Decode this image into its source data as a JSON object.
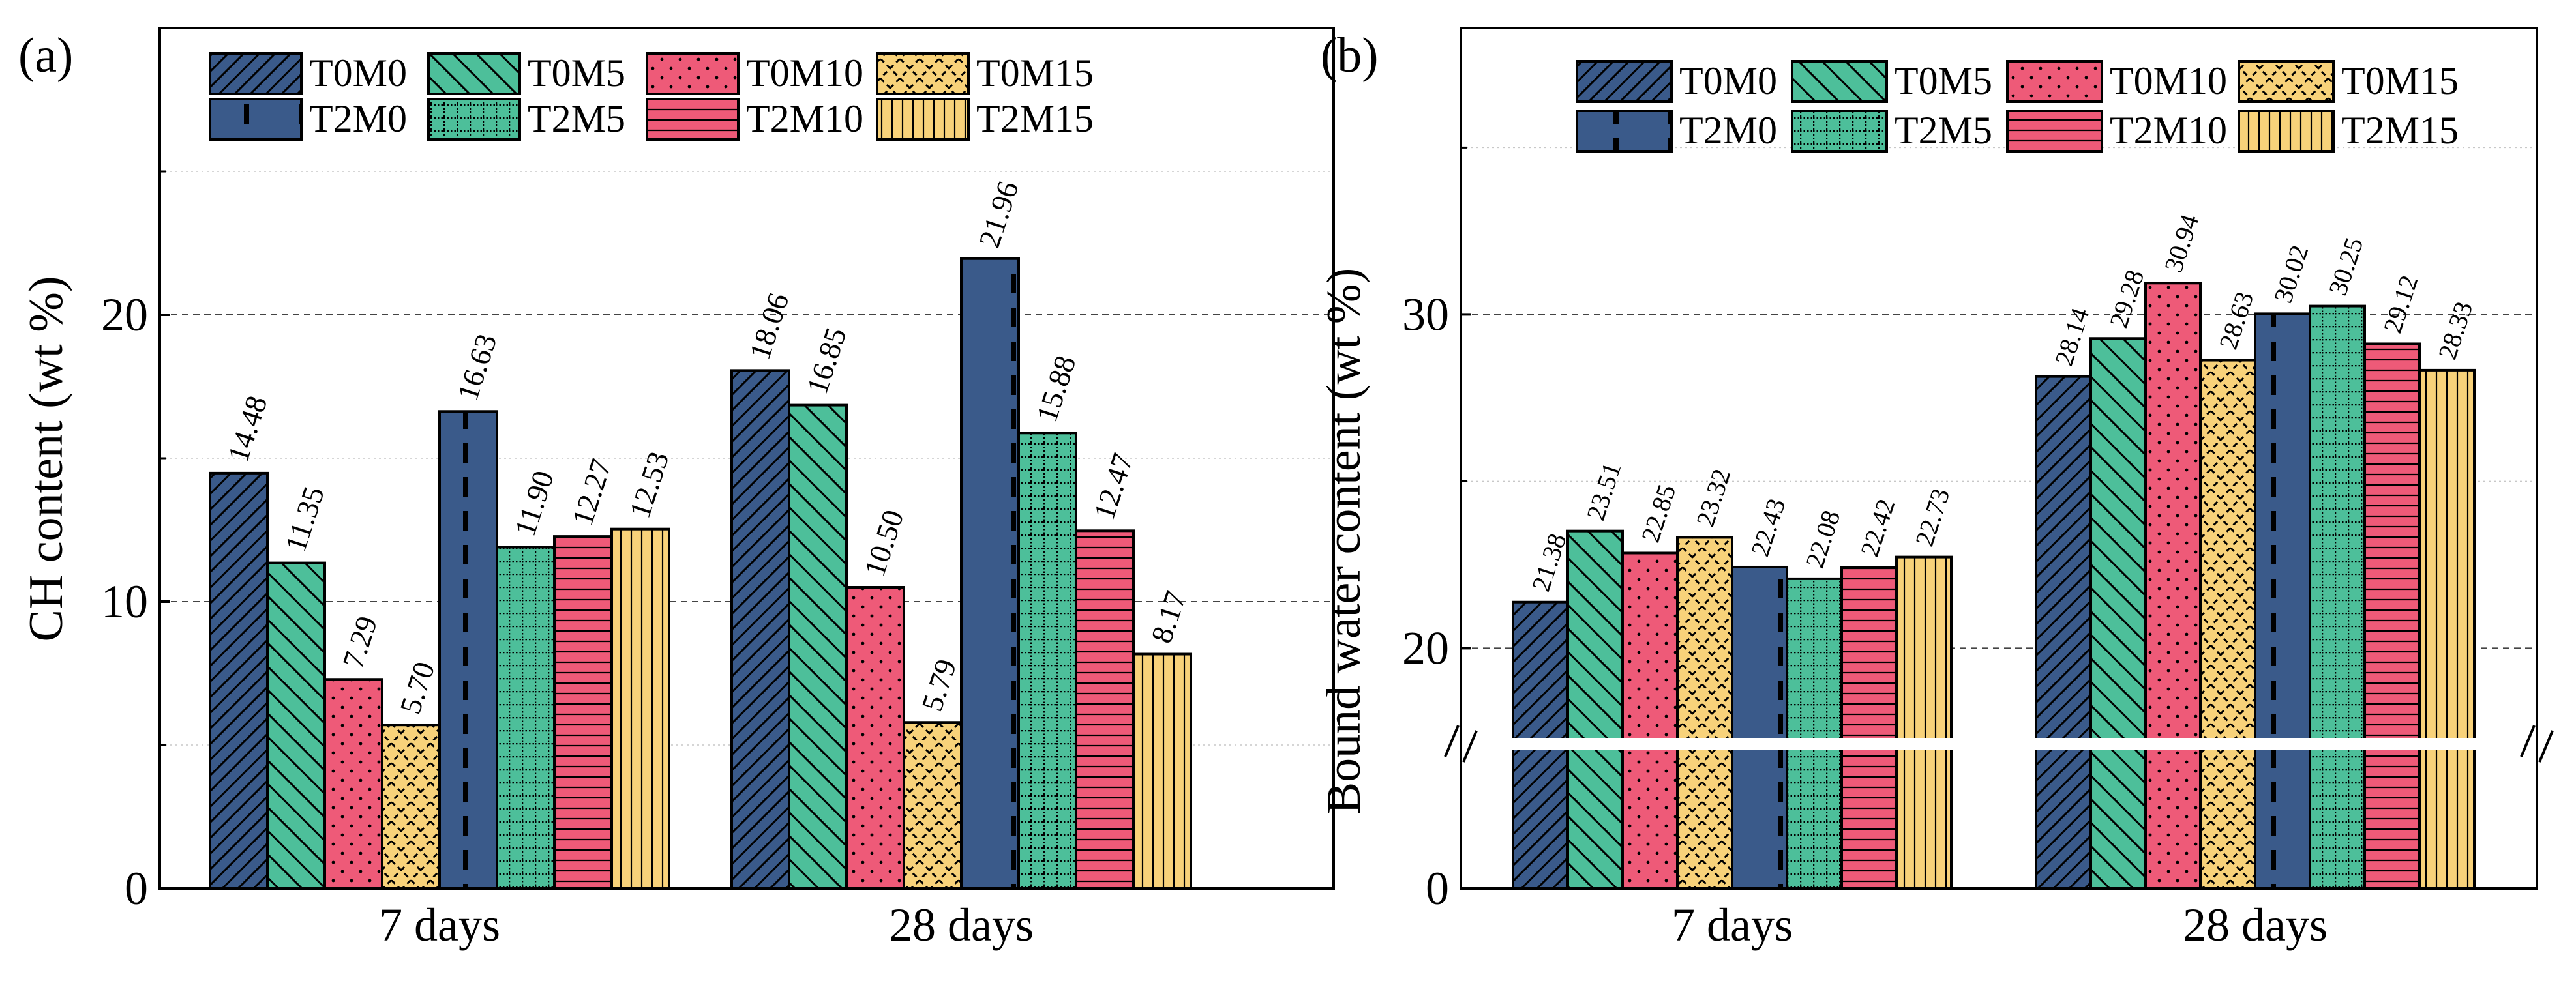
{
  "colors": {
    "navy": "#3a5a8a",
    "green": "#4dbf9a",
    "pink": "#ee5a78",
    "yellow": "#f8d27a",
    "ink": "#000000"
  },
  "chart_data": [
    {
      "type": "bar",
      "panel_label": "(a)",
      "ylabel": "CH content (wt %)",
      "categories": [
        "7 days",
        "28 days"
      ],
      "ylim": [
        0,
        30
      ],
      "yticks": [
        "0",
        "10",
        "20"
      ],
      "axis_break": false,
      "series": [
        {
          "name": "T0M0",
          "values": [
            14.48,
            18.06
          ],
          "labels": [
            "14.48",
            "18.06"
          ]
        },
        {
          "name": "T0M5",
          "values": [
            11.35,
            16.85
          ],
          "labels": [
            "11.35",
            "16.85"
          ]
        },
        {
          "name": "T0M10",
          "values": [
            7.29,
            10.5
          ],
          "labels": [
            "7.29",
            "10.50"
          ]
        },
        {
          "name": "T0M15",
          "values": [
            5.7,
            5.79
          ],
          "labels": [
            "5.70",
            "5.79"
          ]
        },
        {
          "name": "T2M0",
          "values": [
            16.63,
            21.96
          ],
          "labels": [
            "16.63",
            "21.96"
          ]
        },
        {
          "name": "T2M5",
          "values": [
            11.9,
            15.88
          ],
          "labels": [
            "11.90",
            "15.88"
          ]
        },
        {
          "name": "T2M10",
          "values": [
            12.27,
            12.47
          ],
          "labels": [
            "12.27",
            "12.47"
          ]
        },
        {
          "name": "T2M15",
          "values": [
            12.53,
            8.17
          ],
          "labels": [
            "12.53",
            "8.17"
          ]
        }
      ]
    },
    {
      "type": "bar",
      "panel_label": "(b)",
      "ylabel": "Bound water content (wt %)",
      "categories": [
        "7 days",
        "28 days"
      ],
      "ylim": [
        17,
        38
      ],
      "yticks": [
        "0",
        "20",
        "30"
      ],
      "axis_break": true,
      "series": [
        {
          "name": "T0M0",
          "values": [
            21.38,
            28.14
          ],
          "labels": [
            "21.38",
            "28.14"
          ]
        },
        {
          "name": "T0M5",
          "values": [
            23.51,
            29.28
          ],
          "labels": [
            "23.51",
            "29.28"
          ]
        },
        {
          "name": "T0M10",
          "values": [
            22.85,
            30.94
          ],
          "labels": [
            "22.85",
            "30.94"
          ]
        },
        {
          "name": "T0M15",
          "values": [
            23.32,
            28.63
          ],
          "labels": [
            "23.32",
            "28.63"
          ]
        },
        {
          "name": "T2M0",
          "values": [
            22.43,
            30.02
          ],
          "labels": [
            "22.43",
            "30.02"
          ]
        },
        {
          "name": "T2M5",
          "values": [
            22.08,
            30.25
          ],
          "labels": [
            "22.08",
            "30.25"
          ]
        },
        {
          "name": "T2M10",
          "values": [
            22.42,
            29.12
          ],
          "labels": [
            "22.42",
            "29.12"
          ]
        },
        {
          "name": "T2M15",
          "values": [
            22.73,
            28.33
          ],
          "labels": [
            "22.73",
            "28.33"
          ]
        }
      ]
    }
  ]
}
